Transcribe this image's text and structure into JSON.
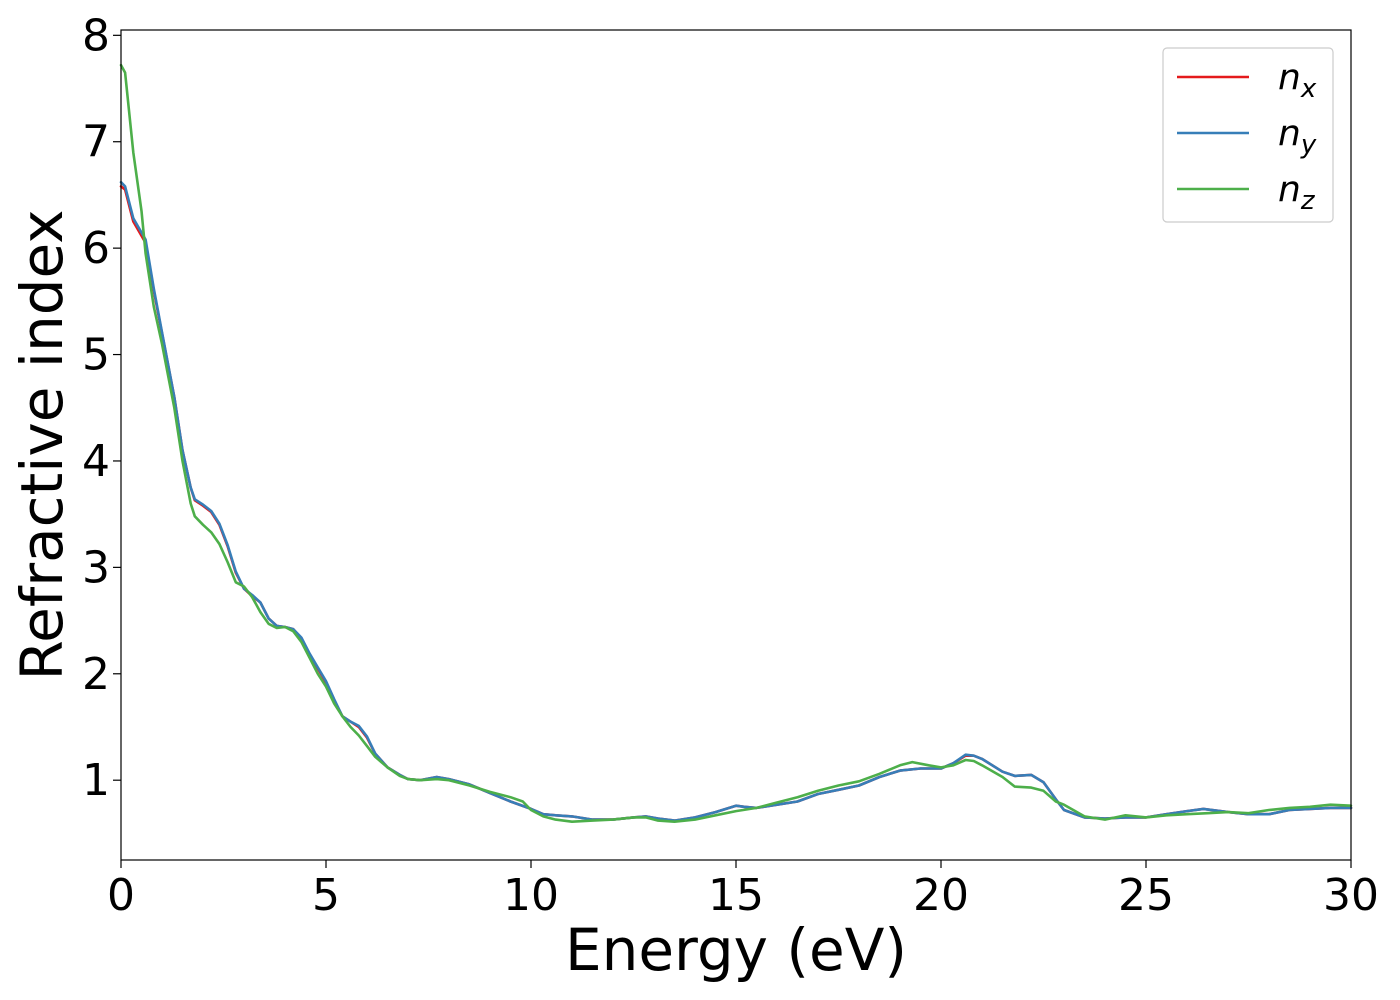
{
  "chart_data": {
    "type": "line",
    "title": "",
    "xlabel": "Energy (eV)",
    "ylabel": "Refractive index",
    "xlim": [
      0,
      30
    ],
    "ylim": [
      0.25,
      8.05
    ],
    "xticks": [
      0,
      5,
      10,
      15,
      20,
      25,
      30
    ],
    "yticks": [
      1,
      2,
      3,
      4,
      5,
      6,
      7,
      8
    ],
    "grid": false,
    "legend": {
      "placement": "top-right",
      "entries": [
        {
          "base": "n",
          "sub": "x",
          "color": "#e41a1c"
        },
        {
          "base": "n",
          "sub": "y",
          "color": "#377eb8"
        },
        {
          "base": "n",
          "sub": "z",
          "color": "#4daf4a"
        }
      ]
    },
    "series": [
      {
        "name": "n_x",
        "color": "#e41a1c",
        "points": [
          [
            0,
            6.58
          ],
          [
            0.1,
            6.55
          ],
          [
            0.3,
            6.25
          ],
          [
            0.6,
            6.05
          ],
          [
            0.8,
            5.6
          ],
          [
            1,
            5.2
          ],
          [
            1.3,
            4.6
          ],
          [
            1.5,
            4.1
          ],
          [
            1.7,
            3.75
          ],
          [
            1.8,
            3.63
          ],
          [
            2,
            3.58
          ],
          [
            2.2,
            3.52
          ],
          [
            2.4,
            3.4
          ],
          [
            2.6,
            3.2
          ],
          [
            2.8,
            2.95
          ],
          [
            3,
            2.8
          ],
          [
            3.2,
            2.73
          ],
          [
            3.4,
            2.67
          ],
          [
            3.6,
            2.52
          ],
          [
            3.8,
            2.45
          ],
          [
            4,
            2.44
          ],
          [
            4.2,
            2.42
          ],
          [
            4.4,
            2.33
          ],
          [
            4.6,
            2.18
          ],
          [
            4.8,
            2.05
          ],
          [
            5,
            1.92
          ],
          [
            5.2,
            1.75
          ],
          [
            5.4,
            1.6
          ],
          [
            5.6,
            1.55
          ],
          [
            5.8,
            1.5
          ],
          [
            6,
            1.4
          ],
          [
            6.2,
            1.25
          ],
          [
            6.5,
            1.12
          ],
          [
            6.8,
            1.05
          ],
          [
            7,
            1.01
          ],
          [
            7.3,
            1.0
          ],
          [
            7.7,
            1.03
          ],
          [
            8,
            1.01
          ],
          [
            8.5,
            0.96
          ],
          [
            9,
            0.88
          ],
          [
            9.5,
            0.8
          ],
          [
            10,
            0.73
          ],
          [
            10.3,
            0.68
          ],
          [
            10.6,
            0.67
          ],
          [
            11,
            0.66
          ],
          [
            11.5,
            0.63
          ],
          [
            12,
            0.63
          ],
          [
            12.5,
            0.65
          ],
          [
            12.8,
            0.66
          ],
          [
            13.1,
            0.64
          ],
          [
            13.5,
            0.62
          ],
          [
            14,
            0.65
          ],
          [
            14.5,
            0.7
          ],
          [
            15,
            0.76
          ],
          [
            15.2,
            0.75
          ],
          [
            15.5,
            0.74
          ],
          [
            16,
            0.77
          ],
          [
            16.5,
            0.8
          ],
          [
            17,
            0.87
          ],
          [
            17.5,
            0.91
          ],
          [
            18,
            0.95
          ],
          [
            18.5,
            1.03
          ],
          [
            19,
            1.09
          ],
          [
            19.5,
            1.11
          ],
          [
            20,
            1.11
          ],
          [
            20.3,
            1.16
          ],
          [
            20.6,
            1.23
          ],
          [
            20.8,
            1.23
          ],
          [
            21,
            1.2
          ],
          [
            21.5,
            1.08
          ],
          [
            21.8,
            1.04
          ],
          [
            22.2,
            1.05
          ],
          [
            22.5,
            0.98
          ],
          [
            22.8,
            0.82
          ],
          [
            23,
            0.72
          ],
          [
            23.5,
            0.65
          ],
          [
            24,
            0.64
          ],
          [
            24.5,
            0.65
          ],
          [
            25,
            0.65
          ],
          [
            25.5,
            0.68
          ],
          [
            26,
            0.71
          ],
          [
            26.4,
            0.73
          ],
          [
            27,
            0.7
          ],
          [
            27.5,
            0.68
          ],
          [
            28,
            0.68
          ],
          [
            28.5,
            0.72
          ],
          [
            29,
            0.73
          ],
          [
            29.5,
            0.74
          ],
          [
            30,
            0.74
          ]
        ]
      },
      {
        "name": "n_y",
        "color": "#377eb8",
        "points": [
          [
            0,
            6.62
          ],
          [
            0.1,
            6.58
          ],
          [
            0.3,
            6.28
          ],
          [
            0.6,
            6.08
          ],
          [
            0.8,
            5.62
          ],
          [
            1,
            5.21
          ],
          [
            1.3,
            4.6
          ],
          [
            1.5,
            4.1
          ],
          [
            1.7,
            3.75
          ],
          [
            1.8,
            3.64
          ],
          [
            2,
            3.59
          ],
          [
            2.2,
            3.53
          ],
          [
            2.4,
            3.41
          ],
          [
            2.6,
            3.21
          ],
          [
            2.8,
            2.96
          ],
          [
            3,
            2.8
          ],
          [
            3.2,
            2.74
          ],
          [
            3.4,
            2.67
          ],
          [
            3.6,
            2.52
          ],
          [
            3.8,
            2.45
          ],
          [
            4,
            2.44
          ],
          [
            4.2,
            2.42
          ],
          [
            4.4,
            2.34
          ],
          [
            4.6,
            2.19
          ],
          [
            4.8,
            2.06
          ],
          [
            5,
            1.93
          ],
          [
            5.2,
            1.76
          ],
          [
            5.4,
            1.6
          ],
          [
            5.6,
            1.55
          ],
          [
            5.8,
            1.51
          ],
          [
            6,
            1.41
          ],
          [
            6.2,
            1.25
          ],
          [
            6.5,
            1.12
          ],
          [
            6.8,
            1.05
          ],
          [
            7,
            1.01
          ],
          [
            7.3,
            1.0
          ],
          [
            7.7,
            1.03
          ],
          [
            8,
            1.01
          ],
          [
            8.5,
            0.96
          ],
          [
            9,
            0.88
          ],
          [
            9.5,
            0.8
          ],
          [
            10,
            0.73
          ],
          [
            10.3,
            0.68
          ],
          [
            10.6,
            0.67
          ],
          [
            11,
            0.66
          ],
          [
            11.5,
            0.63
          ],
          [
            12,
            0.63
          ],
          [
            12.5,
            0.65
          ],
          [
            12.8,
            0.66
          ],
          [
            13.1,
            0.64
          ],
          [
            13.5,
            0.62
          ],
          [
            14,
            0.65
          ],
          [
            14.5,
            0.7
          ],
          [
            15,
            0.76
          ],
          [
            15.2,
            0.75
          ],
          [
            15.5,
            0.74
          ],
          [
            16,
            0.77
          ],
          [
            16.5,
            0.8
          ],
          [
            17,
            0.87
          ],
          [
            17.5,
            0.91
          ],
          [
            18,
            0.95
          ],
          [
            18.5,
            1.03
          ],
          [
            19,
            1.09
          ],
          [
            19.5,
            1.11
          ],
          [
            20,
            1.11
          ],
          [
            20.3,
            1.16
          ],
          [
            20.6,
            1.24
          ],
          [
            20.8,
            1.23
          ],
          [
            21,
            1.2
          ],
          [
            21.5,
            1.08
          ],
          [
            21.8,
            1.04
          ],
          [
            22.2,
            1.05
          ],
          [
            22.5,
            0.98
          ],
          [
            22.8,
            0.82
          ],
          [
            23,
            0.72
          ],
          [
            23.5,
            0.65
          ],
          [
            24,
            0.64
          ],
          [
            24.5,
            0.65
          ],
          [
            25,
            0.65
          ],
          [
            25.5,
            0.68
          ],
          [
            26,
            0.71
          ],
          [
            26.4,
            0.73
          ],
          [
            27,
            0.7
          ],
          [
            27.5,
            0.68
          ],
          [
            28,
            0.68
          ],
          [
            28.5,
            0.72
          ],
          [
            29,
            0.73
          ],
          [
            29.5,
            0.74
          ],
          [
            30,
            0.74
          ]
        ]
      },
      {
        "name": "n_z",
        "color": "#4daf4a",
        "points": [
          [
            0,
            7.72
          ],
          [
            0.1,
            7.65
          ],
          [
            0.3,
            6.9
          ],
          [
            0.5,
            6.35
          ],
          [
            0.6,
            5.95
          ],
          [
            0.8,
            5.45
          ],
          [
            1,
            5.1
          ],
          [
            1.3,
            4.5
          ],
          [
            1.5,
            4.0
          ],
          [
            1.7,
            3.6
          ],
          [
            1.8,
            3.48
          ],
          [
            2,
            3.4
          ],
          [
            2.2,
            3.33
          ],
          [
            2.4,
            3.22
          ],
          [
            2.6,
            3.05
          ],
          [
            2.8,
            2.86
          ],
          [
            3,
            2.82
          ],
          [
            3.2,
            2.72
          ],
          [
            3.4,
            2.58
          ],
          [
            3.6,
            2.47
          ],
          [
            3.8,
            2.43
          ],
          [
            4,
            2.44
          ],
          [
            4.2,
            2.4
          ],
          [
            4.4,
            2.3
          ],
          [
            4.6,
            2.15
          ],
          [
            4.8,
            2.0
          ],
          [
            5,
            1.88
          ],
          [
            5.2,
            1.72
          ],
          [
            5.4,
            1.6
          ],
          [
            5.6,
            1.5
          ],
          [
            5.8,
            1.42
          ],
          [
            6,
            1.32
          ],
          [
            6.2,
            1.22
          ],
          [
            6.5,
            1.12
          ],
          [
            6.8,
            1.04
          ],
          [
            7,
            1.01
          ],
          [
            7.3,
            1.0
          ],
          [
            7.7,
            1.01
          ],
          [
            8,
            1.0
          ],
          [
            8.5,
            0.95
          ],
          [
            9,
            0.89
          ],
          [
            9.5,
            0.84
          ],
          [
            9.8,
            0.8
          ],
          [
            10,
            0.72
          ],
          [
            10.3,
            0.66
          ],
          [
            10.6,
            0.63
          ],
          [
            11,
            0.61
          ],
          [
            11.5,
            0.62
          ],
          [
            12,
            0.63
          ],
          [
            12.5,
            0.65
          ],
          [
            12.8,
            0.65
          ],
          [
            13.1,
            0.62
          ],
          [
            13.5,
            0.61
          ],
          [
            14,
            0.63
          ],
          [
            14.5,
            0.67
          ],
          [
            15,
            0.71
          ],
          [
            15.5,
            0.74
          ],
          [
            16,
            0.79
          ],
          [
            16.5,
            0.84
          ],
          [
            17,
            0.9
          ],
          [
            17.5,
            0.95
          ],
          [
            18,
            0.99
          ],
          [
            18.5,
            1.06
          ],
          [
            19,
            1.14
          ],
          [
            19.3,
            1.17
          ],
          [
            19.7,
            1.14
          ],
          [
            20,
            1.12
          ],
          [
            20.3,
            1.14
          ],
          [
            20.6,
            1.19
          ],
          [
            20.8,
            1.18
          ],
          [
            21,
            1.14
          ],
          [
            21.5,
            1.03
          ],
          [
            21.8,
            0.94
          ],
          [
            22.2,
            0.93
          ],
          [
            22.5,
            0.9
          ],
          [
            22.8,
            0.8
          ],
          [
            23,
            0.77
          ],
          [
            23.5,
            0.66
          ],
          [
            24,
            0.63
          ],
          [
            24.5,
            0.67
          ],
          [
            25,
            0.65
          ],
          [
            25.5,
            0.67
          ],
          [
            26,
            0.68
          ],
          [
            26.5,
            0.69
          ],
          [
            27,
            0.7
          ],
          [
            27.5,
            0.69
          ],
          [
            28,
            0.72
          ],
          [
            28.5,
            0.74
          ],
          [
            29,
            0.75
          ],
          [
            29.5,
            0.77
          ],
          [
            30,
            0.76
          ]
        ]
      }
    ]
  }
}
